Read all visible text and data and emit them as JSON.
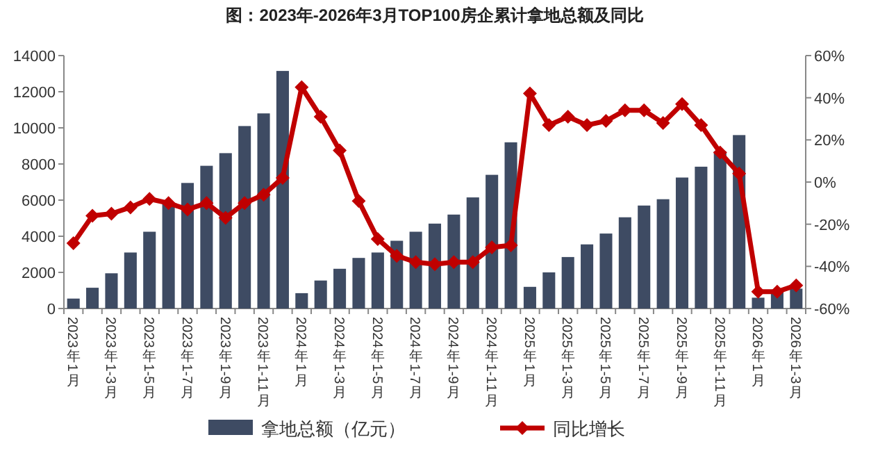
{
  "chart_data": {
    "type": "bar",
    "title": "图：2023年-2026年3月TOP100房企累计拿地总额及同比",
    "categories": [
      "2023年1月",
      null,
      "2023年1-3月",
      null,
      "2023年1-5月",
      null,
      "2023年1-7月",
      null,
      "2023年1-9月",
      null,
      "2023年1-11月",
      null,
      "2024年1月",
      null,
      "2024年1-3月",
      null,
      "2024年1-5月",
      null,
      "2024年1-7月",
      null,
      "2024年1-9月",
      null,
      "2024年1-11月",
      null,
      "2025年1月",
      null,
      "2025年1-3月",
      null,
      "2025年1-5月",
      null,
      "2025年1-7月",
      null,
      "2025年1-9月",
      null,
      "2025年1-11月",
      null,
      "2026年1月",
      null,
      "2026年1-3月"
    ],
    "series": [
      {
        "name": "拿地总额（亿元）",
        "color": "#3e4b63",
        "values": [
          550,
          1150,
          1950,
          3100,
          4250,
          5800,
          6950,
          7900,
          8600,
          10100,
          10800,
          13150,
          850,
          1550,
          2200,
          2800,
          3100,
          3750,
          4250,
          4700,
          5200,
          6150,
          7400,
          9200,
          1200,
          2000,
          2850,
          3550,
          4150,
          5050,
          5700,
          6050,
          7250,
          7850,
          8700,
          9600,
          600,
          950,
          1100
        ]
      },
      {
        "name": "同比增长",
        "type": "line",
        "axis": "y2",
        "color": "#c00000",
        "values": [
          -29,
          -16,
          -15,
          -12,
          -8,
          -10,
          -13,
          -10,
          -17,
          -10,
          -6,
          2,
          45,
          31,
          15,
          -9,
          -27,
          -35,
          -38,
          -39,
          -38,
          -38,
          -31,
          -30,
          42,
          27,
          31,
          27,
          29,
          34,
          34,
          28,
          37,
          27,
          14,
          4,
          -52,
          -52,
          -49
        ]
      }
    ],
    "ylim": [
      0,
      14000
    ],
    "yticks": [
      0,
      2000,
      4000,
      6000,
      8000,
      10000,
      12000,
      14000
    ],
    "y2lim": [
      -60,
      60
    ],
    "y2ticks": [
      {
        "value": -60,
        "label": "-60%"
      },
      {
        "value": -40,
        "label": "-40%"
      },
      {
        "value": -20,
        "label": "-20%"
      },
      {
        "value": 0,
        "label": "0%"
      },
      {
        "value": 20,
        "label": "20%"
      },
      {
        "value": 40,
        "label": "40%"
      },
      {
        "value": 60,
        "label": "60%"
      }
    ],
    "marker": "diamond",
    "legend": "bottom"
  }
}
